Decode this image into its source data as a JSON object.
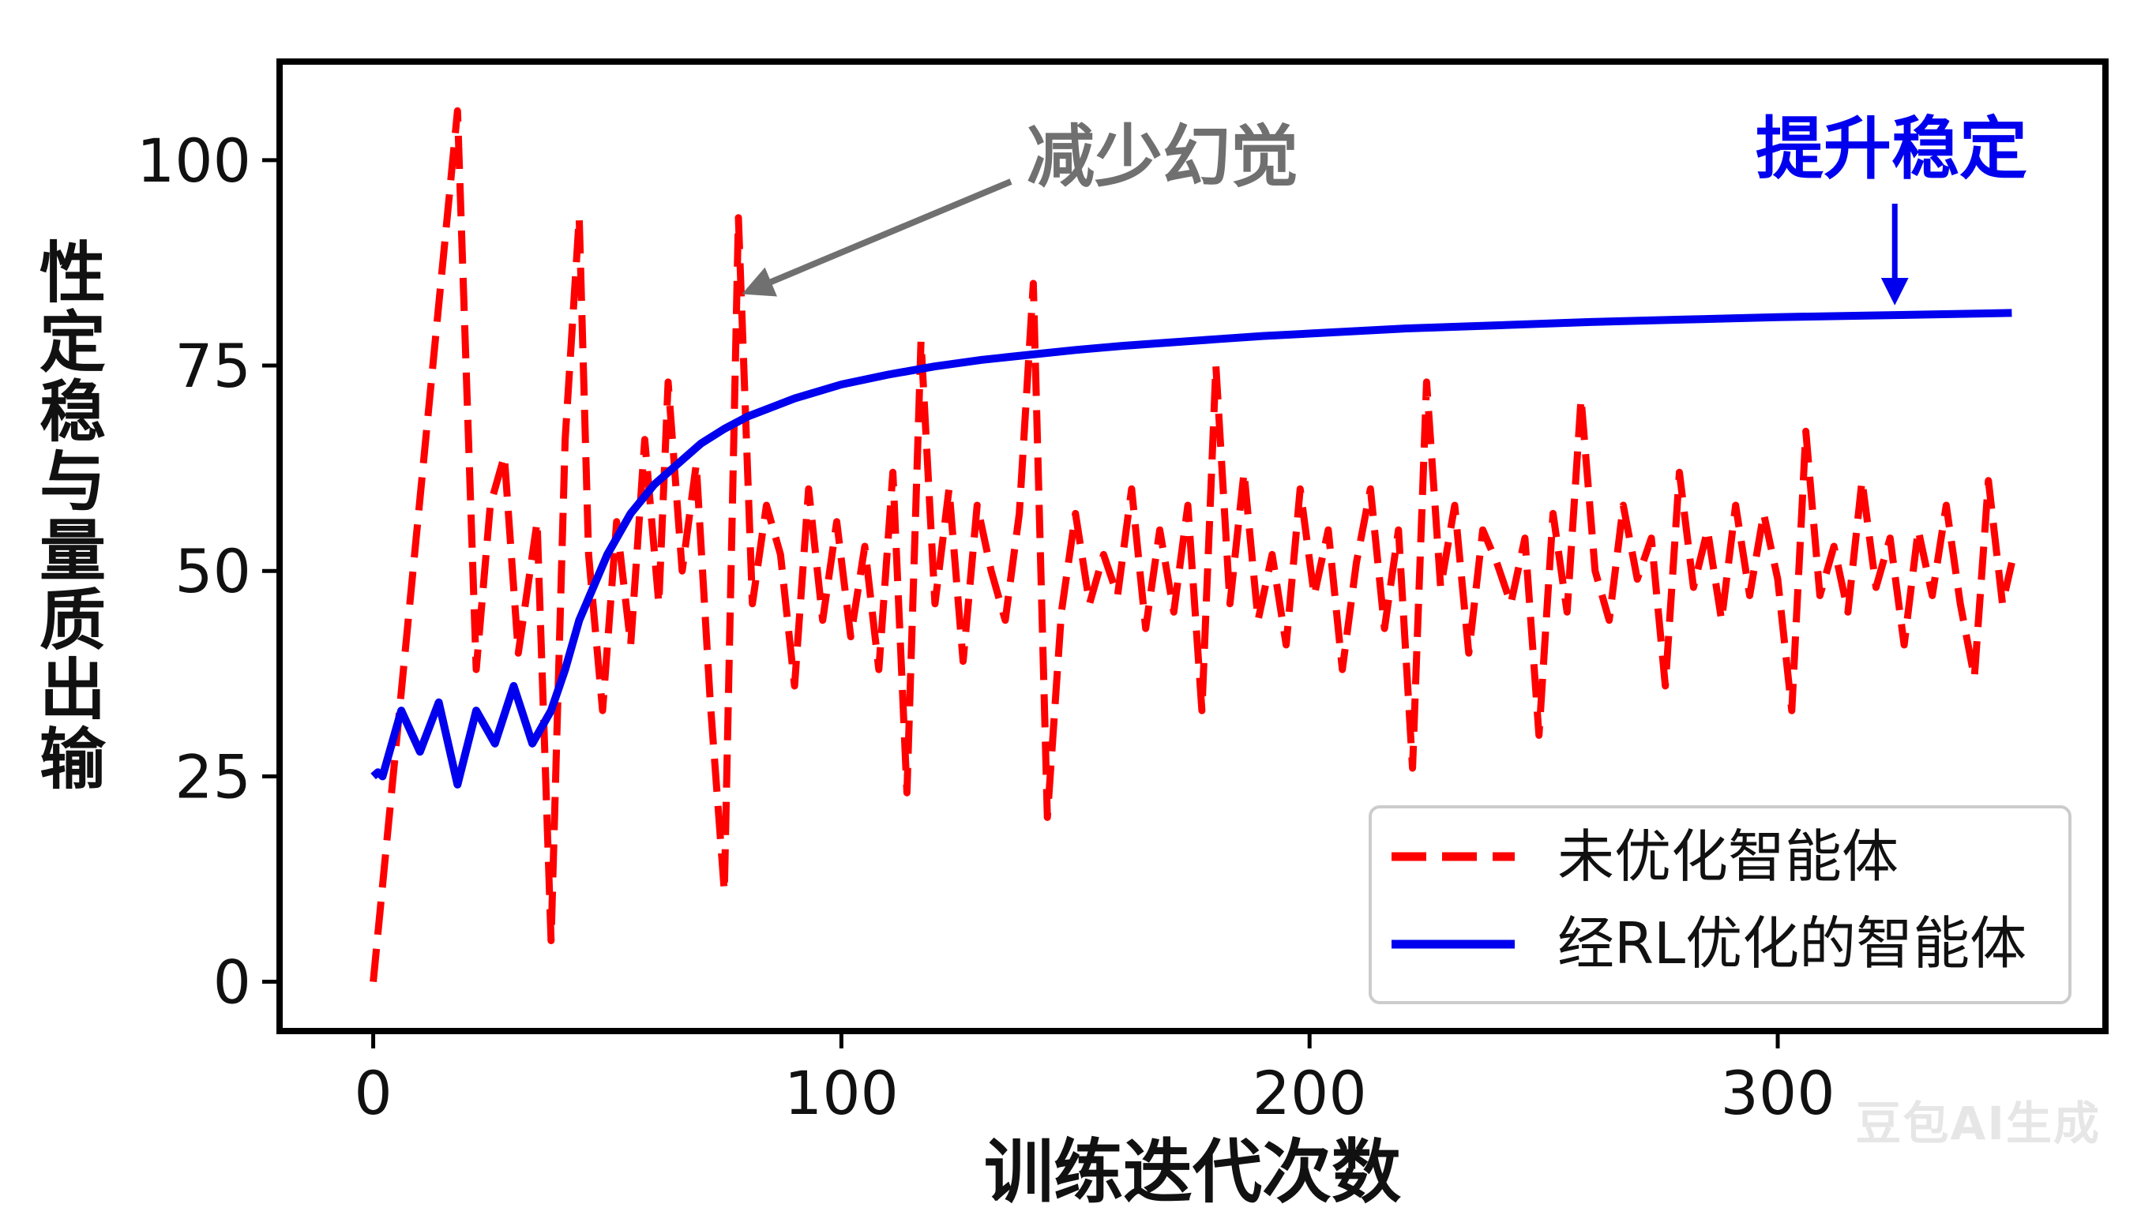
{
  "chart_data": {
    "type": "line",
    "title": "",
    "xlabel": "训练迭代次数",
    "ylabel": "性定稳与量质出输",
    "xlim": [
      -20,
      370
    ],
    "ylim": [
      -6,
      112
    ],
    "x_ticks": [
      0,
      100,
      200,
      300
    ],
    "x_tick_labels": [
      "0",
      "100",
      "200",
      "300"
    ],
    "y_ticks": [
      0,
      25,
      50,
      75,
      100
    ],
    "y_tick_labels": [
      "0",
      "25",
      "50",
      "75",
      "100"
    ],
    "grid": false,
    "legend_position": "bottom-right",
    "series": [
      {
        "name": "未优化智能体",
        "color": "#ff0000",
        "style": "dashed",
        "x": [
          0,
          18,
          22,
          25,
          28,
          31,
          35,
          38,
          41,
          44,
          46,
          49,
          52,
          55,
          58,
          61,
          63,
          66,
          69,
          72,
          75,
          78,
          81,
          84,
          87,
          90,
          93,
          96,
          99,
          102,
          105,
          108,
          111,
          114,
          117,
          120,
          123,
          126,
          129,
          132,
          135,
          138,
          141,
          144,
          147,
          150,
          153,
          156,
          159,
          162,
          165,
          168,
          171,
          174,
          177,
          180,
          183,
          186,
          189,
          192,
          195,
          198,
          201,
          204,
          207,
          210,
          213,
          216,
          219,
          222,
          225,
          228,
          231,
          234,
          237,
          240,
          243,
          246,
          249,
          252,
          255,
          258,
          261,
          264,
          267,
          270,
          273,
          276,
          279,
          282,
          285,
          288,
          291,
          294,
          297,
          300,
          303,
          306,
          309,
          312,
          315,
          318,
          321,
          324,
          327,
          330,
          333,
          336,
          339,
          342,
          345,
          348,
          350
        ],
        "y": [
          0,
          106,
          38,
          58,
          64,
          40,
          56,
          5,
          66,
          93,
          52,
          33,
          56,
          41,
          66,
          46,
          73,
          50,
          63,
          34,
          11,
          93,
          46,
          58,
          52,
          36,
          60,
          44,
          56,
          42,
          53,
          38,
          62,
          23,
          78,
          46,
          60,
          39,
          58,
          50,
          44,
          57,
          85,
          20,
          45,
          57,
          46,
          52,
          47,
          60,
          43,
          55,
          45,
          58,
          33,
          75,
          46,
          62,
          44,
          52,
          41,
          60,
          47,
          55,
          38,
          51,
          60,
          43,
          55,
          26,
          73,
          48,
          58,
          40,
          55,
          51,
          46,
          54,
          30,
          57,
          45,
          71,
          50,
          44,
          58,
          49,
          54,
          36,
          62,
          48,
          55,
          44,
          58,
          47,
          57,
          49,
          33,
          67,
          47,
          53,
          45,
          61,
          48,
          54,
          41,
          55,
          47,
          58,
          46,
          37,
          61,
          46,
          51
        ]
      },
      {
        "name": "经RL优化的智能体",
        "color": "#0000ee",
        "style": "solid",
        "x": [
          0,
          1,
          2,
          6,
          10,
          14,
          18,
          22,
          26,
          30,
          34,
          38,
          41,
          44,
          47,
          50,
          55,
          60,
          65,
          70,
          75,
          80,
          90,
          100,
          110,
          120,
          130,
          140,
          150,
          160,
          170,
          180,
          190,
          200,
          220,
          240,
          260,
          280,
          300,
          320,
          340,
          350
        ],
        "y": [
          25,
          25.5,
          25,
          33,
          28,
          34,
          24,
          33,
          29,
          36,
          29,
          33,
          38,
          44,
          48,
          52,
          57,
          60.5,
          63,
          65.5,
          67.3,
          68.8,
          71,
          72.7,
          73.9,
          74.9,
          75.7,
          76.3,
          76.9,
          77.4,
          77.8,
          78.2,
          78.6,
          78.9,
          79.5,
          79.9,
          80.3,
          80.6,
          80.9,
          81.1,
          81.3,
          81.4
        ]
      }
    ],
    "annotations": [
      {
        "text": "减少幻觉",
        "points_to": [
          80,
          84
        ],
        "color": "#707070"
      },
      {
        "text": "提升稳定",
        "points_to": [
          325,
          83
        ],
        "color": "#0000ee"
      }
    ]
  },
  "watermark": "豆包AI生成"
}
